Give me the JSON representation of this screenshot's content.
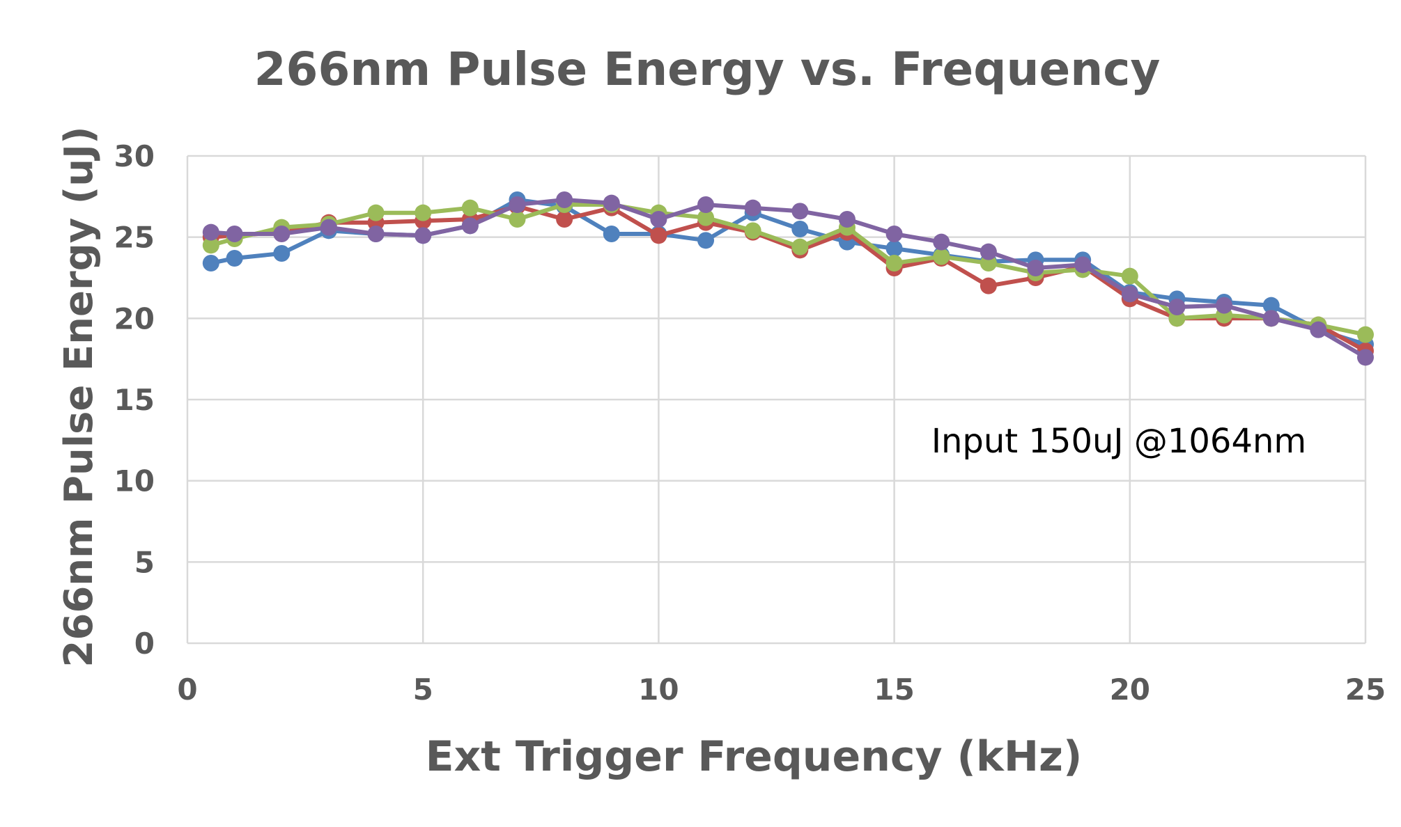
{
  "chart_data": {
    "type": "line",
    "title": "266nm Pulse Energy vs. Frequency",
    "xlabel": "Ext Trigger Frequency (kHz)",
    "ylabel": "266nm Pulse Energy (uJ)",
    "xlim": [
      0,
      25
    ],
    "ylim": [
      0,
      30
    ],
    "x_ticks": [
      "0",
      "5",
      "10",
      "15",
      "20",
      "25"
    ],
    "y_ticks": [
      "0",
      "5",
      "10",
      "15",
      "20",
      "25",
      "30"
    ],
    "grid": true,
    "legend": "none",
    "annotation": "Input 150uJ @1064nm",
    "x": [
      0.5,
      1,
      2,
      3,
      4,
      5,
      6,
      7,
      8,
      9,
      10,
      11,
      12,
      13,
      14,
      15,
      16,
      17,
      18,
      19,
      20,
      21,
      22,
      23,
      24,
      25
    ],
    "series": [
      {
        "color": "#4f81bd",
        "values": [
          23.4,
          23.7,
          24.0,
          25.4,
          25.2,
          25.1,
          25.7,
          27.3,
          26.9,
          25.2,
          25.2,
          24.8,
          26.5,
          25.5,
          24.7,
          24.3,
          23.9,
          23.5,
          23.6,
          23.6,
          21.6,
          21.2,
          21.0,
          20.8,
          19.3,
          18.4
        ]
      },
      {
        "color": "#c0504d",
        "values": [
          25.0,
          25.1,
          25.3,
          25.9,
          25.9,
          26.0,
          26.1,
          26.9,
          26.1,
          26.8,
          25.1,
          25.9,
          25.3,
          24.2,
          25.3,
          23.1,
          23.7,
          22.0,
          22.5,
          23.2,
          21.2,
          20.0,
          20.0,
          20.0,
          19.6,
          18.0
        ]
      },
      {
        "color": "#9bbb59",
        "values": [
          24.5,
          24.9,
          25.6,
          25.8,
          26.5,
          26.5,
          26.8,
          26.1,
          27.0,
          27.0,
          26.5,
          26.2,
          25.4,
          24.4,
          25.6,
          23.4,
          23.8,
          23.4,
          22.8,
          23.0,
          22.6,
          20.0,
          20.2,
          20.0,
          19.6,
          19.0
        ]
      },
      {
        "color": "#8064a2",
        "values": [
          25.3,
          25.2,
          25.2,
          25.6,
          25.2,
          25.1,
          25.7,
          27.0,
          27.3,
          27.1,
          26.1,
          27.0,
          26.8,
          26.6,
          26.1,
          25.2,
          24.7,
          24.1,
          23.1,
          23.3,
          21.5,
          20.7,
          20.8,
          20.0,
          19.3,
          17.6
        ]
      }
    ]
  }
}
